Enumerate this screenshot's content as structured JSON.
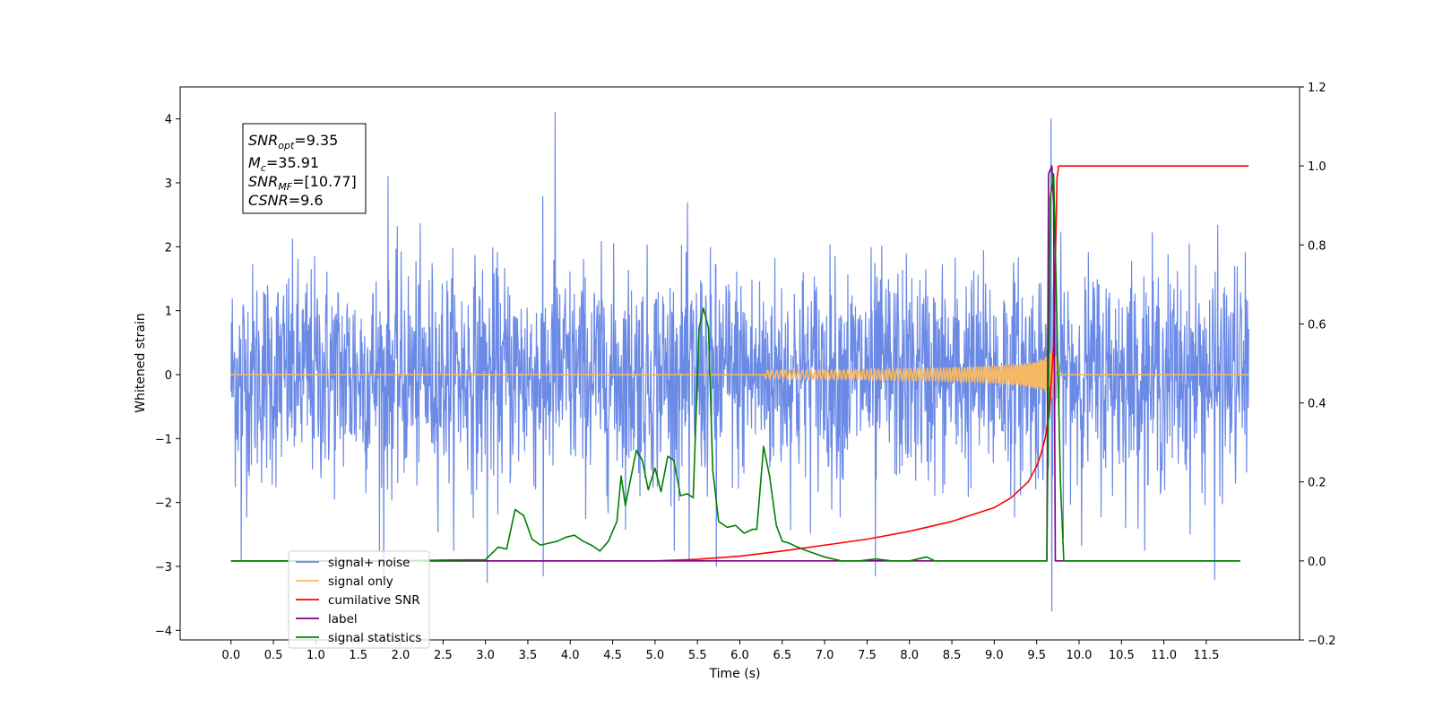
{
  "chart_data": {
    "type": "line",
    "xlabel": "Time (s)",
    "ylabel": "Whitened strain",
    "xlim": [
      -0.6,
      12.6
    ],
    "ylim_left": [
      -4.15,
      4.5
    ],
    "ylim_right": [
      -0.2,
      1.2
    ],
    "x_ticks": [
      "0.0",
      "0.5",
      "1.0",
      "1.5",
      "2.0",
      "2.5",
      "3.0",
      "3.5",
      "4.0",
      "4.5",
      "5.0",
      "5.5",
      "6.0",
      "6.5",
      "7.0",
      "7.5",
      "8.0",
      "8.5",
      "9.0",
      "9.5",
      "10.0",
      "10.5",
      "11.0",
      "11.5"
    ],
    "y_ticks_left": [
      "−4",
      "−3",
      "−2",
      "−1",
      "0",
      "1",
      "2",
      "3",
      "4"
    ],
    "y_ticks_right": [
      "−0.2",
      "0.0",
      "0.2",
      "0.4",
      "0.6",
      "0.8",
      "1.0",
      "1.2"
    ],
    "annotation": {
      "lines": [
        {
          "base": "SNR",
          "sub": "opt",
          "rest": "=9.35"
        },
        {
          "base": "M",
          "sub": "c",
          "rest": "=35.91"
        },
        {
          "base": "SNR",
          "sub": "MF",
          "rest": "=[10.77]"
        },
        {
          "base": "CSNR",
          "sub": "",
          "rest": "=9.6"
        }
      ]
    },
    "series": [
      {
        "name": "signal+ noise",
        "color": "#6b8ae6",
        "axis": "left",
        "kind": "noise",
        "x_range": [
          0.0,
          12.0
        ],
        "noise_sigma": 0.85,
        "spikes": [
          [
            0.12,
            -2.9
          ],
          [
            3.02,
            -3.25
          ],
          [
            3.68,
            -3.15
          ],
          [
            3.82,
            4.1
          ],
          [
            5.4,
            -2.9
          ],
          [
            5.72,
            -3.0
          ],
          [
            7.6,
            -3.15
          ],
          [
            9.67,
            4.0
          ],
          [
            9.68,
            -3.7
          ],
          [
            11.6,
            -3.2
          ],
          [
            1.8,
            -3.2
          ],
          [
            1.85,
            3.1
          ]
        ]
      },
      {
        "name": "signal only",
        "color": "#f5b865",
        "axis": "left",
        "kind": "chirp",
        "x_range": [
          0.0,
          12.0
        ],
        "merger": 9.72
      },
      {
        "name": "cumilative SNR",
        "color": "#ff0000",
        "axis": "right",
        "x": [
          0.0,
          5.0,
          5.5,
          6.0,
          6.5,
          7.0,
          7.5,
          8.0,
          8.5,
          9.0,
          9.2,
          9.4,
          9.5,
          9.55,
          9.6,
          9.65,
          9.7,
          9.72,
          9.74,
          9.76,
          12.0
        ],
        "y": [
          0.0,
          0.0,
          0.004,
          0.012,
          0.025,
          0.04,
          0.055,
          0.075,
          0.1,
          0.135,
          0.16,
          0.2,
          0.24,
          0.27,
          0.31,
          0.38,
          0.55,
          0.75,
          0.97,
          1.0,
          1.0
        ]
      },
      {
        "name": "label",
        "color": "#800080",
        "axis": "right",
        "x": [
          0.0,
          9.62,
          9.64,
          9.68,
          9.7,
          9.72,
          11.9
        ],
        "y": [
          0.0,
          0.0,
          0.98,
          1.0,
          0.9,
          0.0,
          0.0
        ]
      },
      {
        "name": "signal statistics",
        "color": "#008000",
        "axis": "right",
        "x": [
          0.0,
          0.5,
          1.0,
          1.5,
          2.0,
          2.5,
          3.0,
          3.15,
          3.25,
          3.35,
          3.45,
          3.55,
          3.65,
          3.75,
          3.85,
          3.95,
          4.05,
          4.15,
          4.25,
          4.35,
          4.45,
          4.55,
          4.6,
          4.65,
          4.7,
          4.78,
          4.85,
          4.92,
          5.0,
          5.07,
          5.15,
          5.22,
          5.3,
          5.38,
          5.45,
          5.52,
          5.57,
          5.63,
          5.68,
          5.75,
          5.85,
          5.95,
          6.05,
          6.15,
          6.2,
          6.28,
          6.35,
          6.43,
          6.5,
          6.58,
          6.68,
          6.8,
          7.0,
          7.2,
          7.4,
          7.6,
          7.8,
          8.0,
          8.2,
          8.3,
          8.4,
          9.5,
          9.62,
          9.66,
          9.7,
          9.73,
          9.78,
          9.82,
          11.9
        ],
        "y": [
          0.0,
          0.0,
          0.0,
          0.0,
          0.0,
          0.002,
          0.003,
          0.035,
          0.03,
          0.13,
          0.115,
          0.055,
          0.04,
          0.045,
          0.05,
          0.06,
          0.065,
          0.05,
          0.04,
          0.025,
          0.05,
          0.1,
          0.215,
          0.14,
          0.195,
          0.28,
          0.255,
          0.18,
          0.235,
          0.175,
          0.265,
          0.255,
          0.165,
          0.17,
          0.16,
          0.59,
          0.64,
          0.59,
          0.23,
          0.1,
          0.085,
          0.09,
          0.07,
          0.08,
          0.08,
          0.29,
          0.215,
          0.09,
          0.05,
          0.045,
          0.035,
          0.025,
          0.01,
          0.0,
          0.0,
          0.005,
          0.0,
          0.0,
          0.01,
          0.0,
          0.0,
          0.0,
          0.0,
          0.92,
          0.98,
          0.7,
          0.2,
          0.0,
          0.0
        ]
      }
    ],
    "legend_position": "lower-left"
  }
}
